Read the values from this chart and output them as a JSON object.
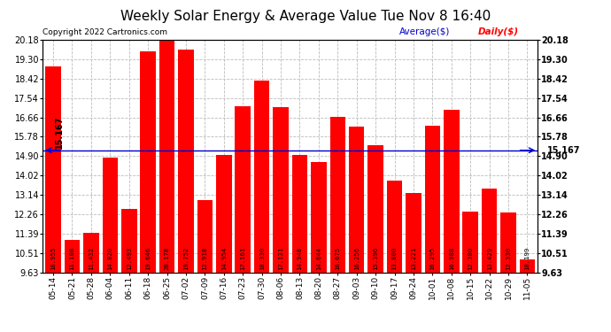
{
  "title": "Weekly Solar Energy & Average Value Tue Nov 8 16:40",
  "copyright": "Copyright 2022 Cartronics.com",
  "legend_average": "Average($)",
  "legend_daily": "Daily($)",
  "categories": [
    "05-14",
    "05-21",
    "05-28",
    "06-04",
    "06-11",
    "06-18",
    "06-25",
    "07-02",
    "07-09",
    "07-16",
    "07-23",
    "07-30",
    "08-06",
    "08-13",
    "08-20",
    "08-27",
    "09-03",
    "09-10",
    "09-17",
    "09-24",
    "10-01",
    "10-08",
    "10-15",
    "10-22",
    "10-29",
    "11-05"
  ],
  "values": [
    18.955,
    11.108,
    11.432,
    14.82,
    12.493,
    19.646,
    20.178,
    19.752,
    12.918,
    14.954,
    17.161,
    18.33,
    17.131,
    14.948,
    14.644,
    16.675,
    16.256,
    15.396,
    13.8,
    13.221,
    16.295,
    16.988,
    12.38,
    13.429,
    12.33,
    10.199
  ],
  "average_line": 15.167,
  "average_label": "15.167",
  "bar_color": "#ff0000",
  "average_color": "#0000cc",
  "background_color": "#ffffff",
  "grid_color": "#bbbbbb",
  "ylim_min": 9.63,
  "ylim_max": 20.18,
  "yticks": [
    9.63,
    10.51,
    11.39,
    12.26,
    13.14,
    14.02,
    14.9,
    15.78,
    16.66,
    17.54,
    18.42,
    19.3,
    20.18
  ],
  "title_fontsize": 11,
  "bar_label_fontsize": 5.2,
  "axis_label_fontsize": 7,
  "copyright_fontsize": 6.5,
  "legend_fontsize": 7.5,
  "avg_label_fontsize": 7
}
